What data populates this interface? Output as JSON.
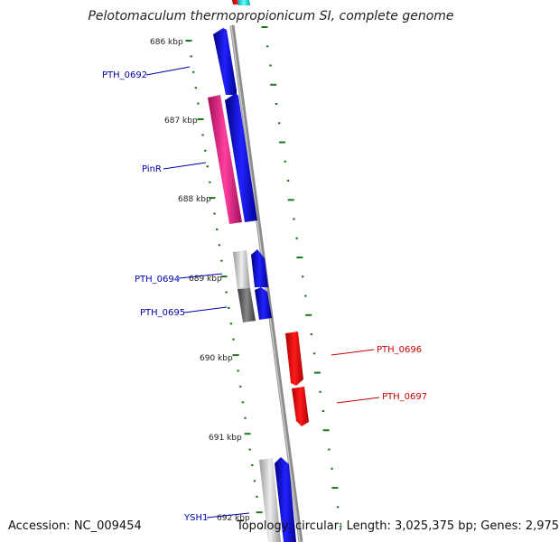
{
  "title": "Pelotomaculum thermopropionicum SI, complete genome",
  "accession": "Accession: NC_009454",
  "topology": "Topology: circular; Length: 3,025,375 bp; Genes: 2,975",
  "colors": {
    "backbone": "#8c8c8c",
    "forward_gene": "#0000ee",
    "reverse_gene": "#ee0000",
    "pinR": "#ee1188",
    "grey_gene": "#bbbbbb",
    "dark_gene": "#666666",
    "tick": "#1a7a1a",
    "label_blue": "#0000aa",
    "label_red": "#cc0000"
  },
  "ticks": [
    "686 kbp",
    "687 kbp",
    "688 kbp",
    "689 kbp",
    "690 kbp",
    "691 kbp",
    "692 kbp"
  ],
  "genes": {
    "pth0692": "PTH_0692",
    "pinR": "PinR",
    "pth0694": "PTH_0694",
    "pth0695": "PTH_0695",
    "pth0696": "PTH_0696",
    "pth0697": "PTH_0697",
    "ysh1": "YSH1"
  }
}
